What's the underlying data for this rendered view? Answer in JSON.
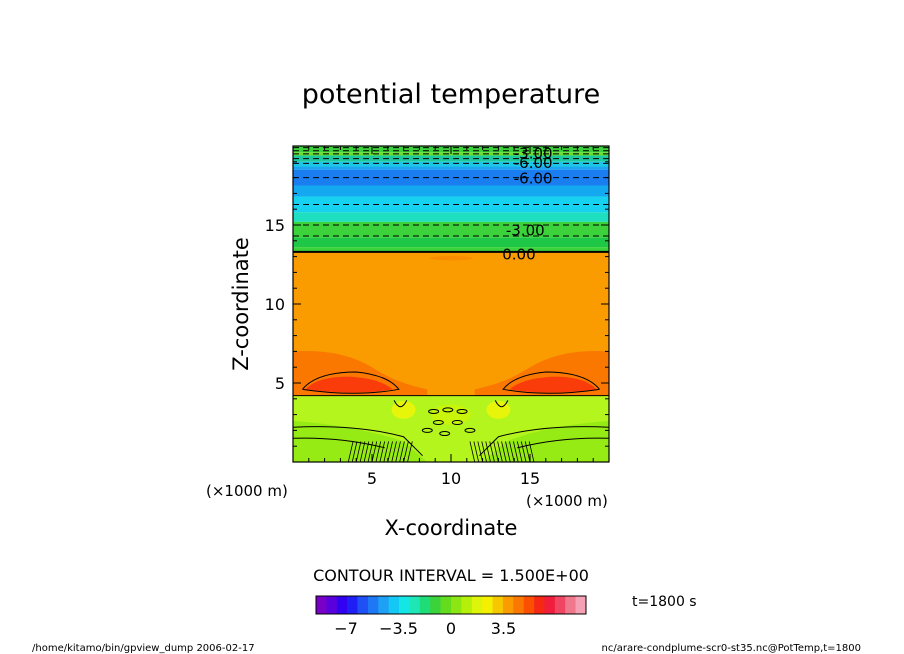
{
  "chart_data": {
    "type": "contour",
    "title": "potential temperature",
    "xlabel": "X-coordinate",
    "ylabel": "Z-coordinate",
    "x_unit": "(×1000 m)",
    "z_unit": "(×1000 m)",
    "xlim": [
      0,
      20
    ],
    "ylim": [
      0,
      20
    ],
    "x_ticks": [
      5,
      10,
      15
    ],
    "z_ticks": [
      5,
      10,
      15
    ],
    "contour_interval_text": "CONTOUR INTERVAL = 1.500E+00",
    "time_text": "t=1800 s",
    "contour_labels": [
      {
        "text": "-3.00",
        "x": 14.7,
        "z": 14.7
      },
      {
        "text": "0.00",
        "x": 14.3,
        "z": 13.2
      },
      {
        "text": "-6.00",
        "x": 15.2,
        "z": 18.0
      },
      {
        "text": "-6.00",
        "x": 15.2,
        "z": 19.0
      },
      {
        "text": "-3.00",
        "x": 15.2,
        "z": 19.6
      }
    ],
    "colorbar": {
      "range": [
        -9,
        9
      ],
      "ticks": [
        {
          "value": -7,
          "label": "−7"
        },
        {
          "value": -3.5,
          "label": "−3.5"
        },
        {
          "value": 0,
          "label": "0"
        },
        {
          "value": 3.5,
          "label": "3.5"
        }
      ]
    }
  },
  "footer": {
    "left": "/home/kitamo/bin/gpview_dump  2006-02-17",
    "right": "nc/arare-condplume-scr0-st35.nc@PotTemp,t=1800"
  }
}
